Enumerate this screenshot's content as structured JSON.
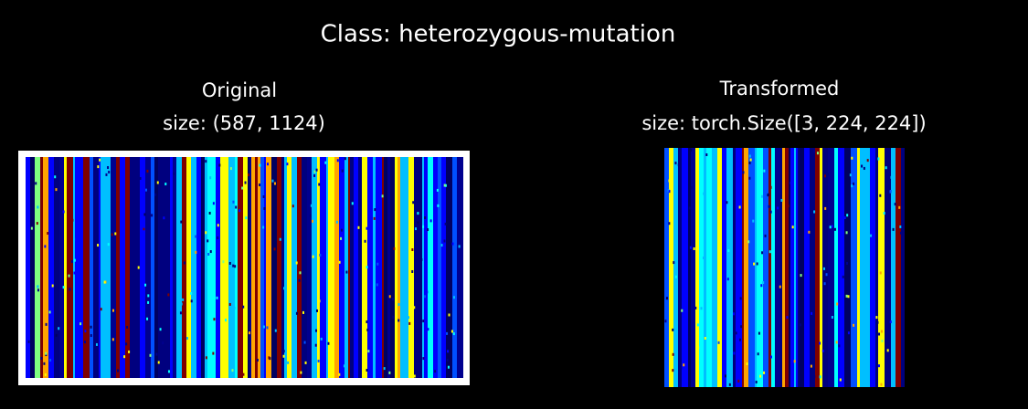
{
  "figure": {
    "title": "Class: heterozygous-mutation",
    "panels": [
      {
        "title_lines": [
          "Original",
          "size: (587, 1124)"
        ]
      },
      {
        "title_lines": [
          "Transformed",
          "size: torch.Size([3, 224, 224])"
        ]
      }
    ]
  }
}
